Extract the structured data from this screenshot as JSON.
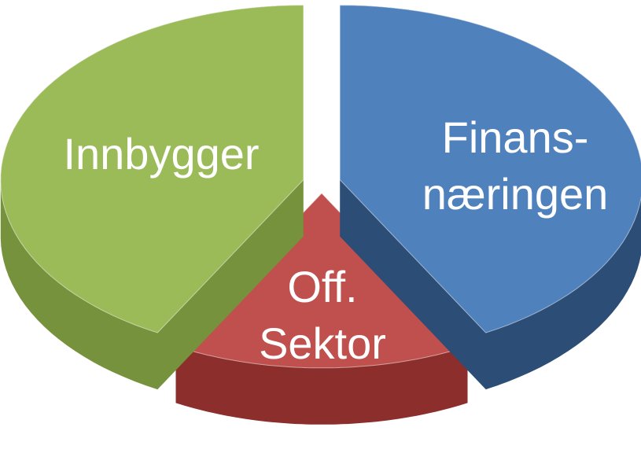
{
  "chart_data": {
    "type": "pie",
    "pie_3d": true,
    "categories": [
      "Finans-\nnæringen",
      "Off.\nSektor",
      "Innbygger"
    ],
    "values": [
      42,
      16,
      42
    ],
    "colors": [
      "#4f81bd",
      "#c0504d",
      "#9bbb59"
    ],
    "side_colors": [
      "#2c4d75",
      "#8b2e2c",
      "#76923c"
    ]
  }
}
